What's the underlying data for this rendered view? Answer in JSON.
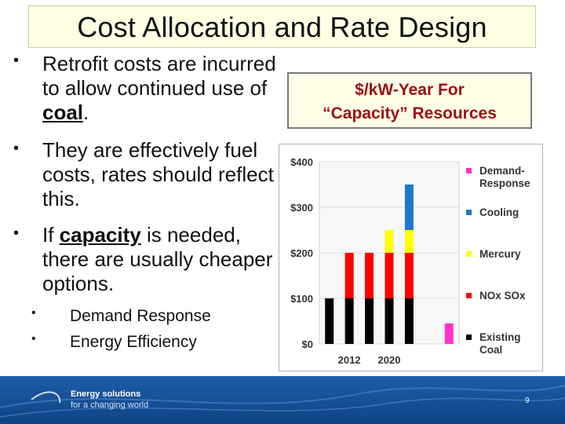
{
  "slide": {
    "title": "Cost Allocation and Rate Design",
    "page_number": "9"
  },
  "bullets": [
    {
      "text": "Retrofit costs are incurred to allow continued use of ",
      "emph": "coal",
      "after": "."
    },
    {
      "text": "They are effectively fuel costs, rates should reflect this.",
      "emph": "",
      "after": ""
    },
    {
      "text": "If ",
      "emph": "capacity",
      "after": " is needed, there are usually cheaper options."
    }
  ],
  "sub_bullets": [
    "Demand Response",
    "Energy Efficiency"
  ],
  "bullet_symbol": "•",
  "chart_title": {
    "line1": "$/kW-Year For",
    "line2": "“Capacity” Resources"
  },
  "footer": {
    "line1": "Energy solutions",
    "line2": "for a changing world"
  },
  "colors": {
    "title_bg": "#ffffe4",
    "chart_title_text": "#9c0f0f",
    "footer_bg": "#1e5da8"
  },
  "chart_data": {
    "type": "bar",
    "stacked": true,
    "y_ticks": [
      "$0",
      "$100",
      "$200",
      "$300",
      "$400"
    ],
    "ylim": [
      0,
      400
    ],
    "x_tick_labels": [
      {
        "label": "2012",
        "bar": 1
      },
      {
        "label": "2020",
        "bar": 3
      }
    ],
    "legend_position": "right",
    "series": [
      {
        "name": "Existing Coal",
        "legend": [
          "Existing",
          "Coal"
        ],
        "color": "#000000"
      },
      {
        "name": "NOx SOx",
        "legend": [
          "NOx SOx"
        ],
        "color": "#ff0000"
      },
      {
        "name": "Mercury",
        "legend": [
          "Mercury"
        ],
        "color": "#ffff00"
      },
      {
        "name": "Cooling",
        "legend": [
          "Cooling"
        ],
        "color": "#1f77c8"
      },
      {
        "name": "Demand-Response",
        "legend": [
          "Demand-",
          "Response"
        ],
        "color": "#ff33cc"
      }
    ],
    "bars": [
      {
        "segments": [
          [
            "Existing Coal",
            100
          ]
        ]
      },
      {
        "segments": [
          [
            "Existing Coal",
            100
          ],
          [
            "NOx SOx",
            100
          ]
        ]
      },
      {
        "segments": [
          [
            "Existing Coal",
            100
          ],
          [
            "NOx SOx",
            100
          ]
        ]
      },
      {
        "segments": [
          [
            "Existing Coal",
            100
          ],
          [
            "NOx SOx",
            100
          ],
          [
            "Mercury",
            50
          ]
        ]
      },
      {
        "segments": [
          [
            "Existing Coal",
            100
          ],
          [
            "NOx SOx",
            100
          ],
          [
            "Mercury",
            50
          ],
          [
            "Cooling",
            100
          ]
        ]
      },
      {
        "segments": []
      },
      {
        "segments": [
          [
            "Demand-Response",
            45
          ]
        ]
      }
    ]
  }
}
